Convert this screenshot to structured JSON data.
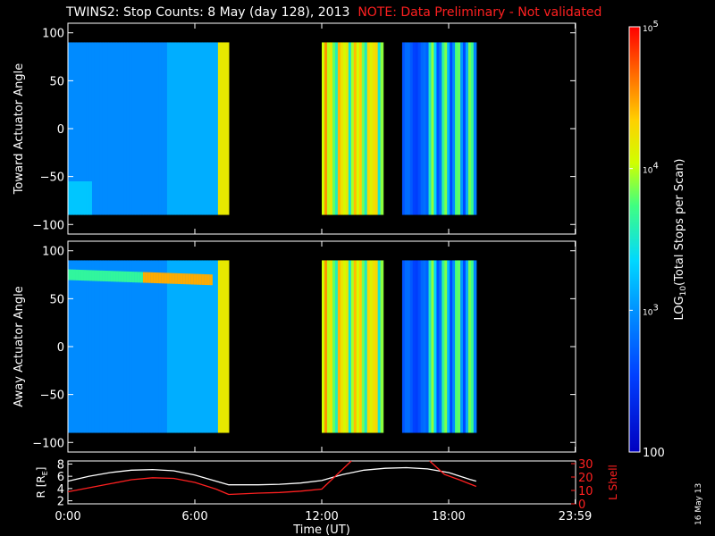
{
  "title": "TWINS2: Stop Counts:  8 May (day 128), 2013",
  "note": "NOTE: Data Preliminary - Not validated",
  "date_stamp": "16 May 13",
  "chart_data": [
    {
      "type": "heatmap",
      "ylabel": "Toward Actuator Angle",
      "ylim": [
        -110,
        110
      ],
      "yticks": [
        100,
        50,
        0,
        -50,
        -100
      ],
      "angle_range": [
        -90,
        90
      ],
      "xlim": [
        0,
        24
      ],
      "data_intervals": [
        [
          0,
          7.6
        ],
        [
          12.0,
          14.9
        ],
        [
          15.8,
          19.3
        ]
      ],
      "color": "log10 counts"
    },
    {
      "type": "heatmap",
      "ylabel": "Away Actuator Angle",
      "ylim": [
        -110,
        110
      ],
      "yticks": [
        100,
        50,
        0,
        -50,
        -100
      ],
      "angle_range": [
        -90,
        90
      ],
      "xlim": [
        0,
        24
      ],
      "data_intervals": [
        [
          0,
          7.6
        ],
        [
          12.0,
          14.9
        ],
        [
          15.8,
          19.3
        ]
      ],
      "color": "log10 counts"
    },
    {
      "type": "line",
      "ylabel_left": "R [R",
      "ylabel_left_sub": "E",
      "ylabel_left_close": "]",
      "ylabel_right": "L Shell",
      "yticks_left": [
        2,
        4,
        6,
        8
      ],
      "ylim_left": [
        1.5,
        8.5
      ],
      "yticks_right": [
        0,
        10,
        20,
        30
      ],
      "ylim_right": [
        0,
        32
      ],
      "xlabel": "Time (UT)",
      "xticks": [
        "0:00",
        "6:00",
        "12:00",
        "18:00",
        "23:59"
      ],
      "xtick_values": [
        0,
        6,
        12,
        18,
        23.98
      ],
      "series": [
        {
          "color": "#ffffff",
          "x": [
            0,
            1,
            2,
            3,
            4,
            5,
            6,
            7,
            7.6,
            9,
            10,
            11,
            12,
            13,
            14,
            15,
            16,
            17,
            18,
            19,
            19.3
          ],
          "y": [
            5.2,
            6.0,
            6.6,
            7.0,
            7.1,
            6.9,
            6.2,
            5.2,
            4.6,
            4.6,
            4.7,
            4.9,
            5.3,
            6.3,
            7.0,
            7.3,
            7.4,
            7.2,
            6.6,
            5.5,
            5.2
          ]
        },
        {
          "color": "#ff2020",
          "axis": "right",
          "x": [
            0,
            1,
            2,
            3,
            4,
            5,
            6,
            7,
            7.6,
            9,
            10,
            11,
            12,
            12.6,
            13.4
          ],
          "y": [
            9,
            12,
            15,
            18,
            19.5,
            19,
            16,
            11,
            7,
            8,
            8.5,
            9.5,
            11,
            20,
            32
          ]
        },
        {
          "color": "#ff2020",
          "axis": "right",
          "x": [
            17.1,
            17.8,
            18.5,
            19.3
          ],
          "y": [
            32,
            22,
            18,
            13
          ]
        }
      ]
    }
  ],
  "colorbar": {
    "label": "LOG",
    "label_sub": "10",
    "label_rest": "(Total Stops per Scan)",
    "ticks": [
      "10",
      "10",
      "10",
      "100"
    ],
    "tick_exps": [
      "5",
      "4",
      "3",
      ""
    ],
    "tick_values": [
      100000,
      10000,
      1000,
      100
    ],
    "range": [
      100,
      100000
    ]
  }
}
